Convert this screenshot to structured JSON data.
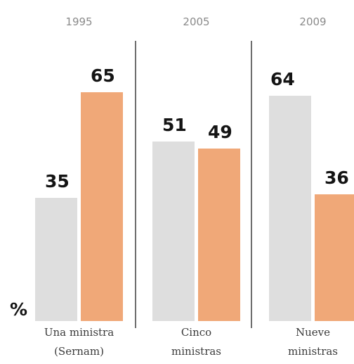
{
  "chart_data": {
    "type": "bar",
    "unit": "%",
    "groups": [
      {
        "year": "1995",
        "label_lines": [
          "Una ministra",
          "(Sernam)"
        ],
        "values": [
          35,
          65
        ]
      },
      {
        "year": "2005",
        "label_lines": [
          "Cinco",
          "ministras"
        ],
        "values": [
          51,
          49
        ]
      },
      {
        "year": "2009",
        "label_lines": [
          "Nueve",
          "ministras"
        ],
        "values": [
          64,
          36
        ]
      }
    ],
    "ylim": [
      0,
      100
    ],
    "grid": false,
    "legend": "none"
  },
  "colors": {
    "bar_first": "#dedede",
    "bar_second": "#f0a878",
    "divider": "#6e6e6e"
  }
}
